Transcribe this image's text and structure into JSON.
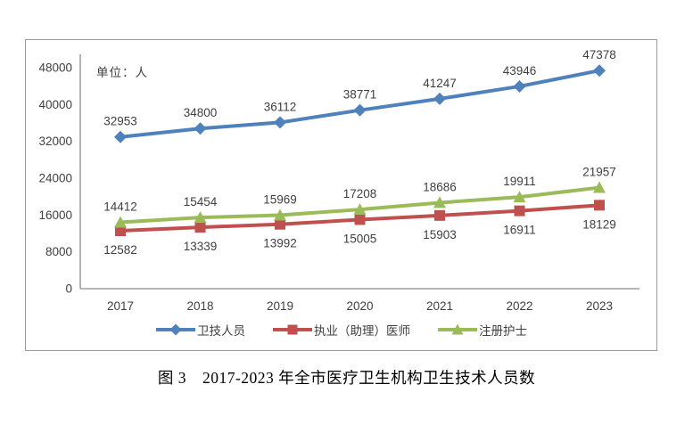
{
  "page": {
    "caption": "图 3　2017-2023 年全市医疗卫生机构卫生技术人员数"
  },
  "chart": {
    "frame_border_color": "#9c9c9c",
    "axis_color": "#8c8c8c",
    "text_color": "#3f3f3f"
  },
  "chart_data": {
    "type": "line",
    "title": "",
    "unit_label": "单位：人",
    "categories": [
      "2017",
      "2018",
      "2019",
      "2020",
      "2021",
      "2022",
      "2023"
    ],
    "series": [
      {
        "name": "卫技人员",
        "color": "#4F81BD",
        "marker": "diamond",
        "label_position": "above",
        "values": [
          32953,
          34800,
          36112,
          38771,
          41247,
          43946,
          47378
        ]
      },
      {
        "name": "执业（助理）医师",
        "color": "#C0504D",
        "marker": "square",
        "label_position": "below",
        "values": [
          12582,
          13339,
          13992,
          15005,
          15903,
          16911,
          18129
        ]
      },
      {
        "name": "注册护士",
        "color": "#9BBB59",
        "marker": "triangle",
        "label_position": "above",
        "values": [
          14412,
          15454,
          15969,
          17208,
          18686,
          19911,
          21957
        ]
      }
    ],
    "ylim": [
      0,
      48000
    ],
    "ytick_step": 8000,
    "grid": false,
    "legend_position": "bottom"
  }
}
